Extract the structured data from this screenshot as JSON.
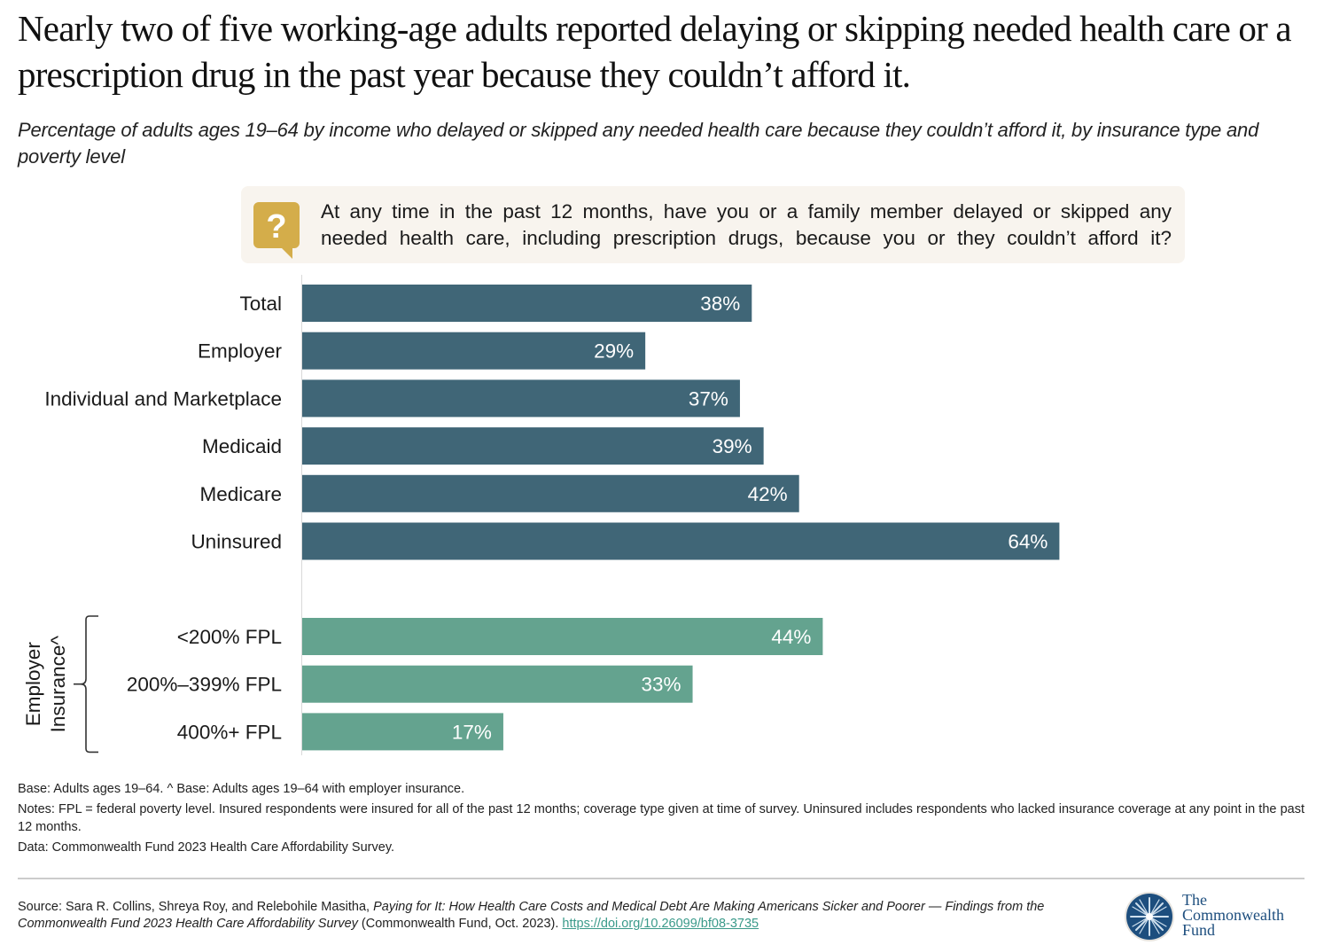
{
  "title": "Nearly two of five working-age adults reported delaying or skipping needed health care or a prescription drug in the past year because they couldn’t afford it.",
  "subtitle": "Percentage of adults ages 19–64 by income who delayed or skipped any needed health care because they couldn’t afford it, by insurance type and poverty level",
  "question": {
    "icon": "question-speech-bubble-icon",
    "line1": "At any time in the past 12 months, have you or a family member delayed or skipped any",
    "line2": "needed health care, including prescription drugs, because you or they couldn’t afford it?"
  },
  "colors": {
    "primary_bar": "#406677",
    "secondary_bar": "#64a38f",
    "question_icon": "#d4ad4a",
    "question_bg": "#f8f4ee",
    "link": "#3a9a8a",
    "logo": "#1d4e7e"
  },
  "chart_data": {
    "type": "bar",
    "orientation": "horizontal",
    "title": "",
    "xlabel": "",
    "ylabel": "",
    "xlim": [
      0,
      100
    ],
    "grid": false,
    "legend": "none",
    "value_suffix": "%",
    "groups": [
      {
        "name": "Insurance type",
        "label": "",
        "color": "#406677",
        "categories": [
          "Total",
          "Employer",
          "Individual and Marketplace",
          "Medicaid",
          "Medicare",
          "Uninsured"
        ],
        "values": [
          38,
          29,
          37,
          39,
          42,
          64
        ]
      },
      {
        "name": "Employer Insurance by poverty level",
        "label_line1": "Employer",
        "label_line2": "Insurance^",
        "color": "#64a38f",
        "categories": [
          "<200% FPL",
          "200%–399% FPL",
          "400%+ FPL"
        ],
        "values": [
          44,
          33,
          17
        ]
      }
    ]
  },
  "notes": {
    "base": "Base: Adults ages 19–64. ^ Base: Adults ages 19–64 with employer insurance.",
    "notes": "Notes: FPL = federal poverty level. Insured respondents were insured for all of the past 12 months; coverage type given at time of survey. Uninsured includes respondents who lacked insurance coverage at any point in the past 12 months.",
    "data": "Data: Commonwealth Fund 2023 Health Care Affordability Survey."
  },
  "source": {
    "prefix": "Source: Sara R. Collins, Shreya Roy, and Relebohile Masitha, ",
    "title": "Paying for It: How Health Care Costs and Medical Debt Are Making Americans Sicker and Poorer — Findings from the Commonwealth Fund 2023 Health Care Affordability Survey",
    "suffix": " (Commonwealth Fund, Oct. 2023). ",
    "link": "https://doi.org/10.26099/bf08-3735"
  },
  "logo": {
    "icon": "commonwealth-fund-emblem-icon",
    "line1": "The",
    "line2": "Commonwealth",
    "line3": "Fund"
  }
}
